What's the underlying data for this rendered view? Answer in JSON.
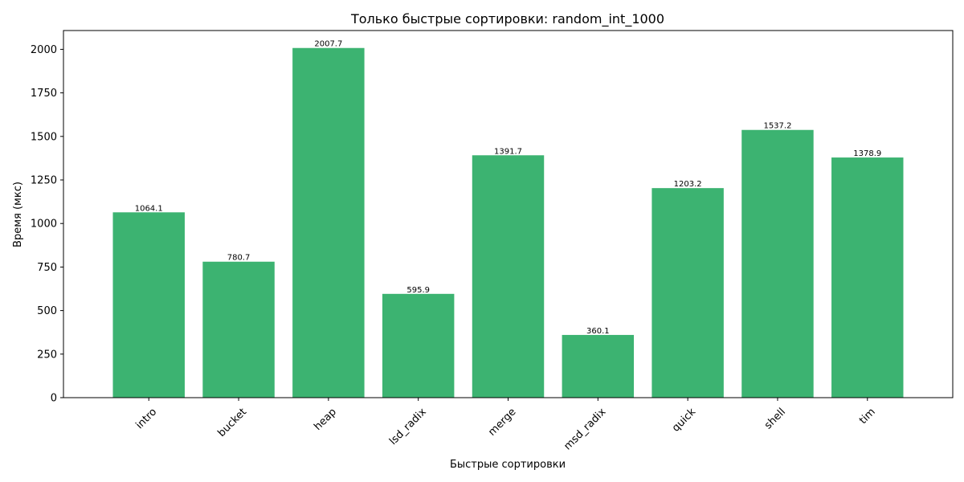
{
  "chart_data": {
    "type": "bar",
    "title": "Только быстрые сортировки: random_int_1000",
    "xlabel": "Быстрые сортировки",
    "ylabel": "Время (мкс)",
    "categories": [
      "intro",
      "bucket",
      "heap",
      "lsd_radix",
      "merge",
      "msd_radix",
      "quick",
      "shell",
      "tim"
    ],
    "values": [
      1064.1,
      780.7,
      2007.7,
      595.9,
      1391.7,
      360.1,
      1203.2,
      1537.2,
      1378.9
    ],
    "value_labels": [
      "1064.1",
      "780.7",
      "2007.7",
      "595.9",
      "1391.7",
      "360.1",
      "1203.2",
      "1537.2",
      "1378.9"
    ],
    "yticks": [
      0,
      250,
      500,
      750,
      1000,
      1250,
      1500,
      1750,
      2000
    ],
    "ylim": [
      0,
      2108
    ],
    "bar_color": "#3cb371",
    "grid": false,
    "legend": "none"
  }
}
